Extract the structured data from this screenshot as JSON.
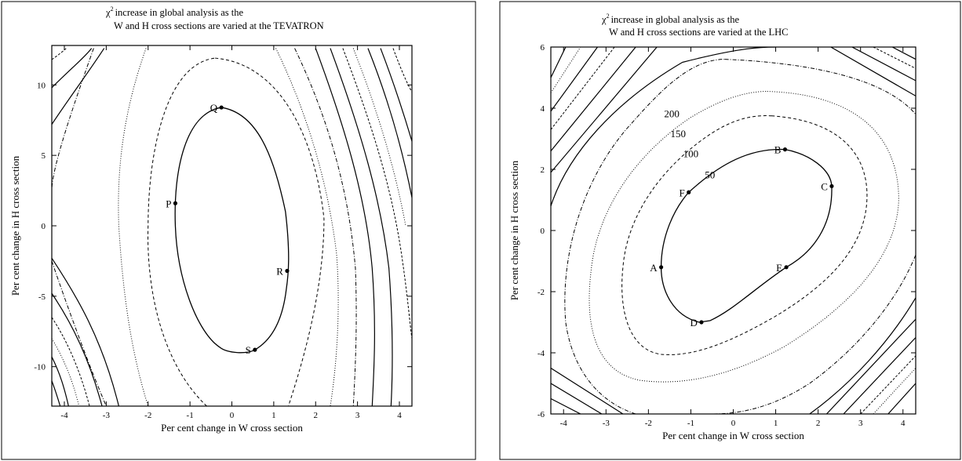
{
  "chart_data": [
    {
      "type": "contour",
      "title_lines": [
        "increase in global analysis as the",
        "W and H cross sections are varied at the TEVATRON"
      ],
      "title_symbol": "χ",
      "title_superscript": "2",
      "xlabel": "Per cent change in W cross section",
      "ylabel": "Per cent change in H cross section",
      "xlim": [
        -4.3,
        4.3
      ],
      "ylim": [
        -12.8,
        12.8
      ],
      "xticks": [
        -4,
        -3,
        -2,
        -1,
        0,
        1,
        2,
        3,
        4
      ],
      "yticks": [
        -10,
        -5,
        0,
        5,
        10
      ],
      "grid": false,
      "contour_labels": [],
      "points": [
        {
          "label": "Q",
          "x": -0.25,
          "y": 8.4
        },
        {
          "label": "P",
          "x": -1.35,
          "y": 1.6
        },
        {
          "label": "R",
          "x": 1.32,
          "y": -3.2
        },
        {
          "label": "S",
          "x": 0.55,
          "y": -8.8
        }
      ]
    },
    {
      "type": "contour",
      "title_lines": [
        "increase in global analysis as the",
        "W and H cross sections are varied at the LHC"
      ],
      "title_symbol": "χ",
      "title_superscript": "2",
      "xlabel": "Per cent change in W cross section",
      "ylabel": "Per cent change in H cross section",
      "xlim": [
        -4.3,
        4.3
      ],
      "ylim": [
        -6,
        6
      ],
      "xticks": [
        -4,
        -3,
        -2,
        -1,
        0,
        1,
        2,
        3,
        4
      ],
      "yticks": [
        -6,
        -4,
        -2,
        0,
        2,
        4,
        6
      ],
      "grid": false,
      "contour_labels": [
        {
          "text": "200",
          "x": -1.45,
          "y": 3.7
        },
        {
          "text": "150",
          "x": -1.3,
          "y": 3.05
        },
        {
          "text": "100",
          "x": -1.0,
          "y": 2.4
        },
        {
          "text": "50",
          "x": -0.55,
          "y": 1.7
        }
      ],
      "points": [
        {
          "label": "B",
          "x": 1.22,
          "y": 2.65
        },
        {
          "label": "C",
          "x": 2.32,
          "y": 1.45
        },
        {
          "label": "F",
          "x": -1.05,
          "y": 1.25
        },
        {
          "label": "A",
          "x": -1.7,
          "y": -1.2
        },
        {
          "label": "E",
          "x": 1.25,
          "y": -1.2
        },
        {
          "label": "D",
          "x": -0.75,
          "y": -3.0
        }
      ]
    }
  ]
}
